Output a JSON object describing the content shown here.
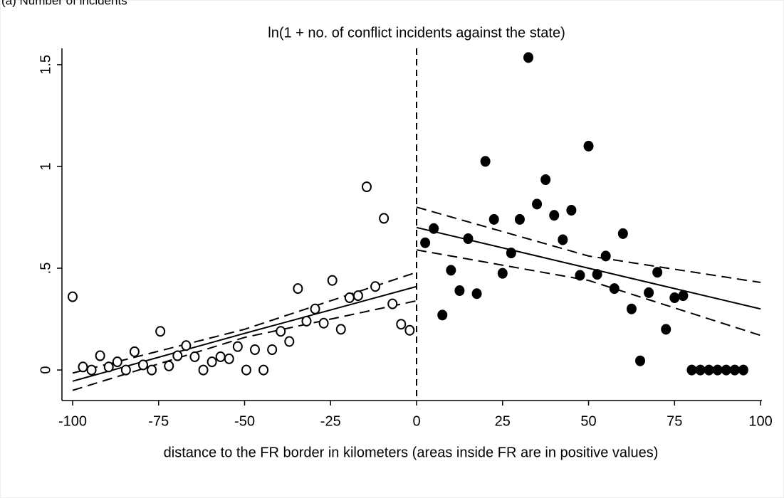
{
  "chart_data": {
    "type": "scatter",
    "subtitle": "(a) Number of incidents",
    "title": "ln(1 + no. of conflict incidents against the state)",
    "x_label": "distance to the FR border in kilometers (areas inside FR are in positive values)",
    "xlim": [
      -103.1,
      100.4
    ],
    "ylim": [
      -0.15,
      1.58
    ],
    "xticks": [
      -100,
      -75,
      -50,
      -25,
      0,
      25,
      50,
      75,
      100
    ],
    "yticks": [
      0,
      {
        "value": 0.5,
        "label": ".5"
      },
      1,
      1.5
    ],
    "cutoff": 0,
    "color": "#000000",
    "points": [
      {
        "filled": false,
        "x": [
          -100,
          -97,
          -94.5,
          -92,
          -89.5,
          -87,
          -84.5,
          -82,
          -79.5,
          -77,
          -74.5,
          -72,
          -69.5,
          -67,
          -64.5,
          -62,
          -59.5,
          -57,
          -54.5,
          -52,
          -49.5,
          -47,
          -44.5,
          -42,
          -39.5,
          -37,
          -34.5,
          -32,
          -29.5,
          -27,
          -24.5,
          -22,
          -19.5,
          -17,
          -14.5,
          -12,
          -9.5,
          -7,
          -4.5,
          -2
        ],
        "values": [
          0.36,
          0.015,
          0,
          0.07,
          0.015,
          0.04,
          0,
          0.09,
          0.025,
          0,
          0.19,
          0.02,
          0.07,
          0.12,
          0.065,
          0,
          0.04,
          0.065,
          0.055,
          0.115,
          0,
          0.1,
          0,
          0.1,
          0.19,
          0.14,
          0.4,
          0.24,
          0.3,
          0.23,
          0.44,
          0.2,
          0.355,
          0.365,
          0.9,
          0.41,
          0.745,
          0.325,
          0.225,
          0.195
        ]
      },
      {
        "filled": true,
        "x": [
          2.5,
          5,
          7.5,
          10,
          12.5,
          15,
          17.5,
          20,
          22.5,
          25,
          27.5,
          30,
          32.5,
          35,
          37.5,
          40,
          42.5,
          45,
          47.5,
          50,
          52.5,
          55,
          57.5,
          60,
          62.5,
          65,
          67.5,
          70,
          72.5,
          75,
          77.5,
          80,
          82.5,
          85,
          87.5,
          90,
          92.5,
          95
        ],
        "values": [
          0.625,
          0.695,
          0.27,
          0.49,
          0.39,
          0.645,
          0.375,
          1.025,
          0.74,
          0.475,
          0.575,
          0.74,
          1.535,
          0.815,
          0.935,
          0.76,
          0.64,
          0.785,
          0.465,
          1.1,
          0.47,
          0.56,
          0.4,
          0.67,
          0.3,
          0.045,
          0.38,
          0.48,
          0.2,
          0.355,
          0.365,
          0,
          0,
          0,
          0,
          0,
          0,
          0
        ]
      }
    ],
    "fits": [
      {
        "dashed": false,
        "x": [
          -100,
          -50,
          0
        ],
        "values": [
          -0.055,
          0.18,
          0.41
        ]
      },
      {
        "dashed": true,
        "x": [
          -100,
          -50,
          0
        ],
        "values": [
          -0.015,
          0.2,
          0.48
        ]
      },
      {
        "dashed": true,
        "x": [
          -100,
          -50,
          0
        ],
        "values": [
          -0.1,
          0.16,
          0.34
        ]
      },
      {
        "dashed": false,
        "x": [
          0,
          50,
          100
        ],
        "values": [
          0.7,
          0.5,
          0.3
        ]
      },
      {
        "dashed": true,
        "x": [
          0,
          50,
          100
        ],
        "values": [
          0.8,
          0.56,
          0.43
        ]
      },
      {
        "dashed": true,
        "x": [
          0,
          50,
          100
        ],
        "values": [
          0.59,
          0.44,
          0.17
        ]
      }
    ]
  }
}
